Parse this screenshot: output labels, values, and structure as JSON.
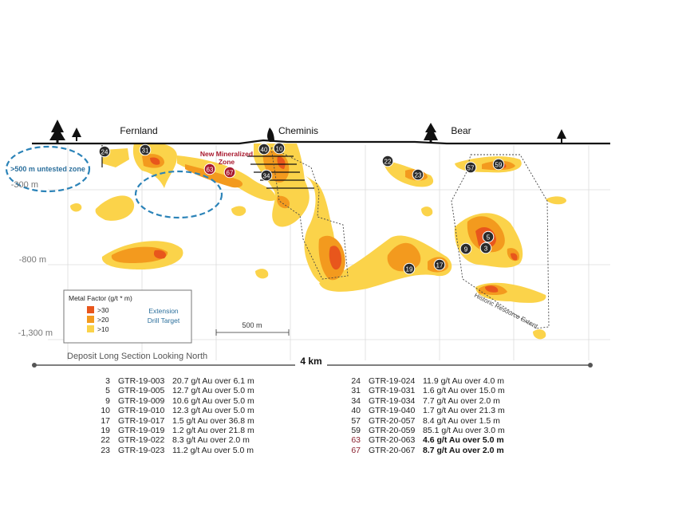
{
  "towns": [
    {
      "name": "Fernland"
    },
    {
      "name": "Cheminis"
    },
    {
      "name": "Bear"
    }
  ],
  "depth_labels": [
    "-300 m",
    "-800 m",
    "-1,300 m"
  ],
  "annotations": {
    "untested_zone": ">500 m untested zone",
    "new_zone_line1": "New Mineralized",
    "new_zone_line2": "Zone",
    "historic_resource": "Historic Resource Extent",
    "scale_bar": "500 m",
    "long_section": "Deposit Long Section Looking North",
    "length_bar": "4 km"
  },
  "legend": {
    "title": "Metal Factor (g/t * m)",
    "items": [
      {
        "label": ">30",
        "color": "#e8561c"
      },
      {
        "label": ">20",
        "color": "#f39a1e"
      },
      {
        "label": ">10",
        "color": "#fbd34a"
      }
    ],
    "extension_line1": "Extension",
    "extension_line2": "Drill Target"
  },
  "colors": {
    "high": "#e8561c",
    "mid": "#f39a1e",
    "low": "#fbd34a",
    "target_circle": "#2b83b8",
    "new_zone_red": "#a8192e",
    "hole_marker": "#2b2b2b"
  },
  "hole_markers": [
    "24",
    "31",
    "40",
    "10",
    "63",
    "67",
    "34",
    "22",
    "23",
    "57",
    "59",
    "5",
    "9",
    "3",
    "19",
    "17"
  ],
  "results_left": [
    {
      "num": "3",
      "hole": "GTR-19-003",
      "result": "20.7 g/t Au over 6.1 m"
    },
    {
      "num": "5",
      "hole": "GTR-19-005",
      "result": "12.7 g/t Au over 5.0 m"
    },
    {
      "num": "9",
      "hole": "GTR-19-009",
      "result": "10.6 g/t Au over 5.0 m"
    },
    {
      "num": "10",
      "hole": "GTR-19-010",
      "result": "12.3 g/t Au over 5.0 m"
    },
    {
      "num": "17",
      "hole": "GTR-19-017",
      "result": "1.5 g/t Au over 36.8 m"
    },
    {
      "num": "19",
      "hole": "GTR-19-019",
      "result": "1.2 g/t Au over 21.8 m"
    },
    {
      "num": "22",
      "hole": "GTR-19-022",
      "result": "8.3 g/t Au over 2.0 m"
    },
    {
      "num": "23",
      "hole": "GTR-19-023",
      "result": "11.2 g/t Au over 5.0 m"
    }
  ],
  "results_right": [
    {
      "num": "24",
      "hole": "GTR-19-024",
      "result": "11.9 g/t Au over 4.0 m"
    },
    {
      "num": "31",
      "hole": "GTR-19-031",
      "result": "1.6 g/t Au over 15.0 m"
    },
    {
      "num": "34",
      "hole": "GTR-19-034",
      "result": "7.7 g/t Au over 2.0 m"
    },
    {
      "num": "40",
      "hole": "GTR-19-040",
      "result": "1.7 g/t Au over 21.3 m"
    },
    {
      "num": "57",
      "hole": "GTR-20-057",
      "result": "8.4 g/t Au over 1.5 m"
    },
    {
      "num": "59",
      "hole": "GTR-20-059",
      "result": "85.1 g/t Au over 3.0 m"
    },
    {
      "num": "63",
      "hole": "GTR-20-063",
      "result": "4.6 g/t Au over 5.0 m",
      "highlight": true
    },
    {
      "num": "67",
      "hole": "GTR-20-067",
      "result": "8.7 g/t Au over 2.0 m",
      "highlight": true
    }
  ]
}
